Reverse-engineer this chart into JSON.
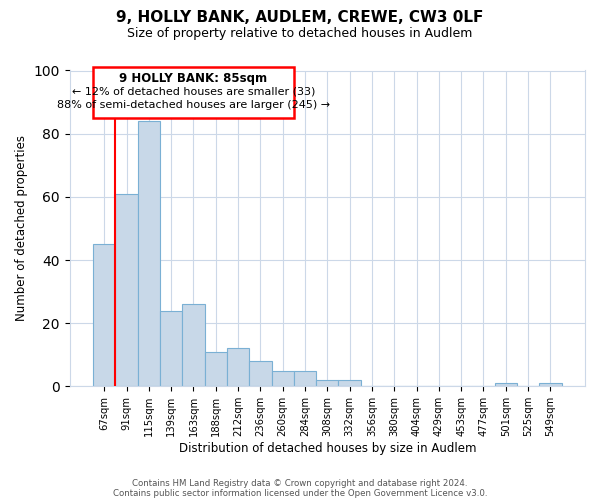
{
  "title": "9, HOLLY BANK, AUDLEM, CREWE, CW3 0LF",
  "subtitle": "Size of property relative to detached houses in Audlem",
  "xlabel": "Distribution of detached houses by size in Audlem",
  "ylabel": "Number of detached properties",
  "bar_color": "#c8d8e8",
  "bar_edge_color": "#7ab0d4",
  "background_color": "#ffffff",
  "grid_color": "#ccd8e8",
  "tick_labels": [
    "67sqm",
    "91sqm",
    "115sqm",
    "139sqm",
    "163sqm",
    "188sqm",
    "212sqm",
    "236sqm",
    "260sqm",
    "284sqm",
    "308sqm",
    "332sqm",
    "356sqm",
    "380sqm",
    "404sqm",
    "429sqm",
    "453sqm",
    "477sqm",
    "501sqm",
    "525sqm",
    "549sqm"
  ],
  "bar_heights": [
    45,
    61,
    84,
    24,
    26,
    11,
    12,
    8,
    5,
    5,
    2,
    2,
    0,
    0,
    0,
    0,
    0,
    0,
    1,
    0,
    1
  ],
  "ylim": [
    0,
    100
  ],
  "yticks": [
    0,
    20,
    40,
    60,
    80,
    100
  ],
  "annotation_title": "9 HOLLY BANK: 85sqm",
  "annotation_line1": "← 12% of detached houses are smaller (33)",
  "annotation_line2": "88% of semi-detached houses are larger (245) →",
  "footer_line1": "Contains HM Land Registry data © Crown copyright and database right 2024.",
  "footer_line2": "Contains public sector information licensed under the Open Government Licence v3.0."
}
